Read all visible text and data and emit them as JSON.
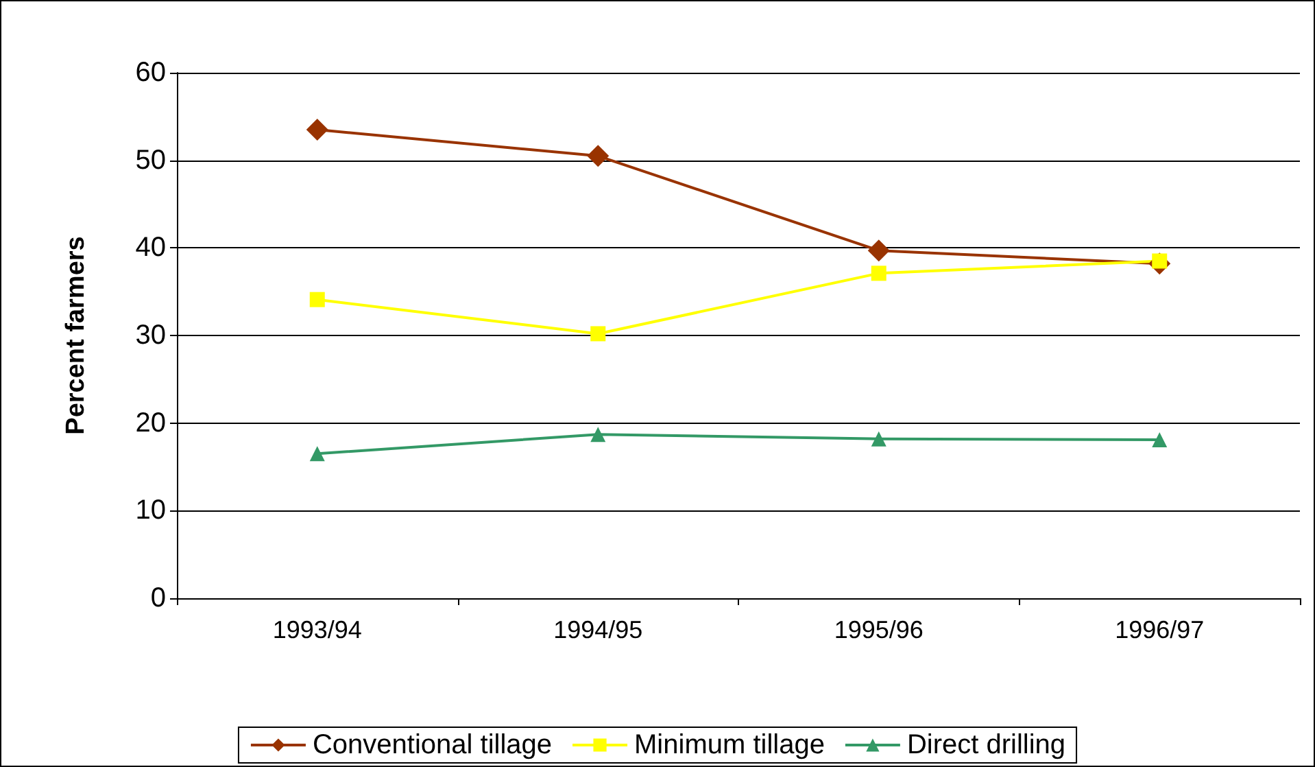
{
  "chart_data": {
    "type": "line",
    "ylabel": "Percent farmers",
    "categories": [
      "1993/94",
      "1994/95",
      "1995/96",
      "1996/97"
    ],
    "series": [
      {
        "name": "Conventional tillage",
        "color": "#993300",
        "marker": "diamond",
        "values": [
          53.5,
          50.5,
          39.7,
          38.2
        ]
      },
      {
        "name": "Minimum tillage",
        "color": "#ffff00",
        "marker": "square",
        "values": [
          34.1,
          30.2,
          37.1,
          38.5
        ]
      },
      {
        "name": "Direct drilling",
        "color": "#339966",
        "marker": "triangle",
        "values": [
          16.5,
          18.7,
          18.2,
          18.1
        ]
      }
    ],
    "ylim": [
      0,
      60
    ],
    "yticks": [
      0,
      10,
      20,
      30,
      40,
      50,
      60
    ],
    "grid": "y",
    "legend": "bottom",
    "line_style": "solid"
  }
}
